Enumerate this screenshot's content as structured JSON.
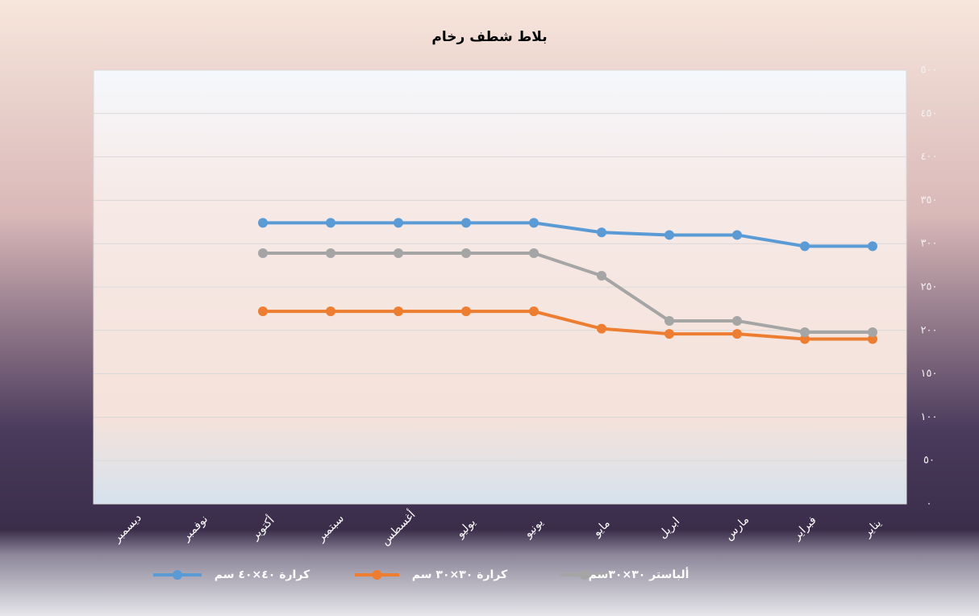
{
  "chart_data": {
    "type": "line",
    "title": "بلاط شطف رخام",
    "categories": [
      "يناير",
      "فبراير",
      "مارس",
      "ابريل",
      "مايو",
      "يونيو",
      "يوليو",
      "أغسطس",
      "سبتمبر",
      "أكتوبر",
      "نوفمبر",
      "ديسمبر"
    ],
    "x_reversed": true,
    "series": [
      {
        "name": "كرارة ٤٠×٤٠ سم",
        "color": "#5b9bd5",
        "values": [
          297,
          297,
          310,
          310,
          313,
          324,
          324,
          324,
          324,
          324,
          null,
          null
        ]
      },
      {
        "name": "كرارة ٣٠×٣٠ سم",
        "color": "#ed7d31",
        "values": [
          190,
          190,
          196,
          196,
          202,
          222,
          222,
          222,
          222,
          222,
          null,
          null
        ]
      },
      {
        "name": "ألباستر ٣٠×٣٠سم",
        "color": "#a5a5a5",
        "values": [
          198,
          198,
          211,
          211,
          263,
          289,
          289,
          289,
          289,
          289,
          null,
          null
        ]
      }
    ],
    "ylim": [
      0,
      500
    ],
    "yticks": [
      {
        "value": 0,
        "label": "٠"
      },
      {
        "value": 50,
        "label": "٥٠"
      },
      {
        "value": 100,
        "label": "١٠٠"
      },
      {
        "value": 150,
        "label": "١٥٠"
      },
      {
        "value": 200,
        "label": "٢٠٠"
      },
      {
        "value": 250,
        "label": "٢٥٠"
      },
      {
        "value": 300,
        "label": "٣٠٠"
      },
      {
        "value": 350,
        "label": "٣٥٠"
      },
      {
        "value": 400,
        "label": "٤٠٠"
      },
      {
        "value": 450,
        "label": "٤٥٠"
      },
      {
        "value": 500,
        "label": "٥٠٠"
      }
    ],
    "y_axis_side": "right",
    "grid": true,
    "legend": "bottom"
  }
}
